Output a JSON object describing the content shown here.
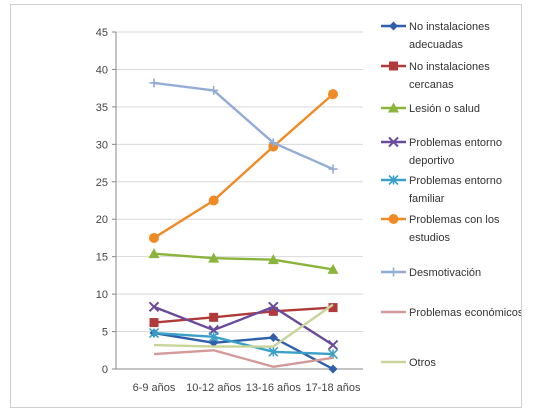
{
  "chart_data": {
    "type": "line",
    "title": "",
    "xlabel": "",
    "ylabel": "",
    "categories": [
      "6-9 años",
      "10-12 años",
      "13-16 años",
      "17-18 años"
    ],
    "ylim": [
      0,
      45
    ],
    "yticks": [
      0,
      5,
      10,
      15,
      20,
      25,
      30,
      35,
      40,
      45
    ],
    "grid": true,
    "legend_position": "right",
    "series": [
      {
        "name": "No instalaciones adecuadas",
        "legend_lines": [
          "No instalaciones",
          "adecuadas"
        ],
        "color": "#2e5fa8",
        "marker": "diamond",
        "values": [
          4.8,
          3.5,
          4.2,
          0
        ]
      },
      {
        "name": "No instalaciones cercanas",
        "legend_lines": [
          "No instalaciones",
          "cercanas"
        ],
        "color": "#b03a3a",
        "marker": "square",
        "values": [
          6.2,
          6.9,
          7.7,
          8.2
        ]
      },
      {
        "name": "Lesión o salud",
        "legend_lines": [
          "Lesión o salud"
        ],
        "color": "#8ab43c",
        "marker": "triangle",
        "values": [
          15.4,
          14.8,
          14.6,
          13.3
        ]
      },
      {
        "name": "Problemas entorno deportivo",
        "legend_lines": [
          "Problemas entorno",
          "deportivo"
        ],
        "color": "#6a4a9a",
        "marker": "x",
        "values": [
          8.3,
          5.2,
          8.3,
          3.2
        ]
      },
      {
        "name": "Problemas entorno familiar",
        "legend_lines": [
          "Problemas entorno",
          "familiar"
        ],
        "color": "#3aa0c8",
        "marker": "star",
        "values": [
          4.8,
          4.3,
          2.3,
          2.0
        ]
      },
      {
        "name": "Problemas con los estudios",
        "legend_lines": [
          "Problemas con los",
          "estudios"
        ],
        "color": "#f08a24",
        "marker": "circle",
        "values": [
          17.5,
          22.5,
          29.7,
          36.7
        ]
      },
      {
        "name": "Desmotivación",
        "legend_lines": [
          "Desmotivación"
        ],
        "color": "#93acd6",
        "marker": "plus",
        "values": [
          38.2,
          37.2,
          30.2,
          26.7
        ]
      },
      {
        "name": "Problemas económicos",
        "legend_lines": [
          "Problemas económicos"
        ],
        "color": "#d49a9a",
        "marker": "none",
        "values": [
          2.0,
          2.5,
          0.3,
          1.5
        ]
      },
      {
        "name": "Otros",
        "legend_lines": [
          "Otros"
        ],
        "color": "#c8d49a",
        "marker": "none",
        "values": [
          3.2,
          3.0,
          3.0,
          8.6
        ]
      }
    ]
  }
}
